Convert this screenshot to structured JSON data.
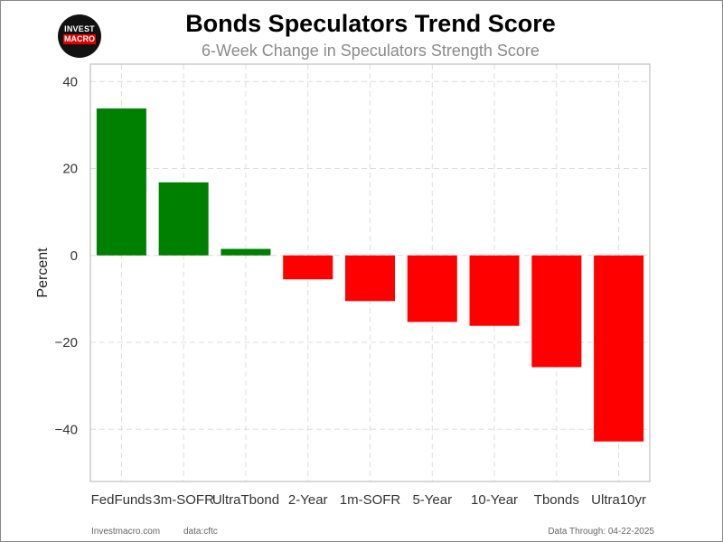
{
  "logo": {
    "line1": "INVEST",
    "line2": "MACRO"
  },
  "footer": {
    "site": "Investmacro.com",
    "source": "data:cftc",
    "through": "Data Through: 04-22-2025"
  },
  "chart_data": {
    "type": "bar",
    "title": "Bonds Speculators Trend Score",
    "subtitle": "6-Week Change in Speculators Strength Score",
    "ylabel": "Percent",
    "xlabel": "",
    "ylim": [
      -52,
      44
    ],
    "yticks": [
      40,
      20,
      0,
      -20,
      -40
    ],
    "ytick_labels": [
      "40",
      "20",
      "0",
      "−20",
      "−40"
    ],
    "categories": [
      "FedFunds",
      "3m-SOFR",
      "UltraTbond",
      "2-Year",
      "1m-SOFR",
      "5-Year",
      "10-Year",
      "Tbonds",
      "Ultra10yr"
    ],
    "values": [
      33.8,
      16.8,
      1.5,
      -5.5,
      -10.5,
      -15.3,
      -16.2,
      -25.7,
      -42.8
    ],
    "colors": {
      "positive": "#008000",
      "negative": "#ff0000",
      "grid": "#dddddd",
      "axis_frame": "#cccccc"
    },
    "grid": true
  }
}
